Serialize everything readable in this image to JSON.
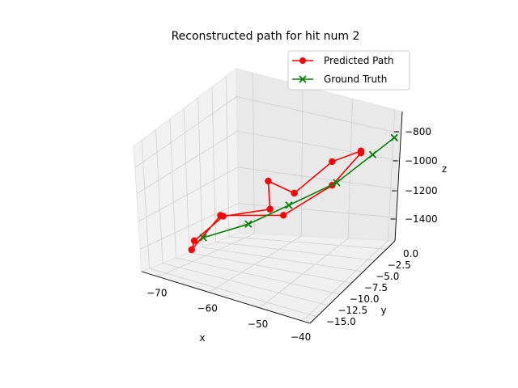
{
  "chart_data": {
    "type": "line",
    "projection": "3d",
    "title": "Reconstructed path for hit num 2",
    "xlabel": "x",
    "ylabel": "y",
    "zlabel": "z",
    "x_ticks": [
      "−70",
      "−60",
      "−50",
      "−40"
    ],
    "y_ticks": [
      "0.0",
      "−2.5",
      "−5.0",
      "−7.5",
      "−10.0",
      "−12.5",
      "−15.0"
    ],
    "z_ticks": [
      "−800",
      "−1000",
      "−1200",
      "−1400"
    ],
    "legend": {
      "placement": "upper-right",
      "entries": [
        "Predicted Path",
        "Ground Truth"
      ]
    },
    "series": [
      {
        "name": "Predicted Path",
        "color": "#ff0000",
        "marker": "circle",
        "x": [
          -41,
          -45,
          -51,
          -55,
          -54,
          -62,
          -66,
          -66,
          -62,
          -51,
          -45,
          -41
        ],
        "y": [
          -2,
          -4,
          -6,
          -7.5,
          -8,
          -10,
          -12,
          -12.5,
          -10.5,
          -8,
          -4,
          -2
        ],
        "z": [
          -870,
          -930,
          -1110,
          -1060,
          -1190,
          -1260,
          -1390,
          -1430,
          -1250,
          -1200,
          -1050,
          -880
        ]
      },
      {
        "name": "Ground Truth",
        "color": "#008000",
        "marker": "x",
        "x": [
          -36,
          -39,
          -44,
          -51,
          -57,
          -64
        ],
        "y": [
          0,
          -1.5,
          -4,
          -7,
          -9.5,
          -12
        ],
        "z": [
          -790,
          -880,
          -1030,
          -1160,
          -1270,
          -1360
        ]
      }
    ],
    "grid": true
  }
}
